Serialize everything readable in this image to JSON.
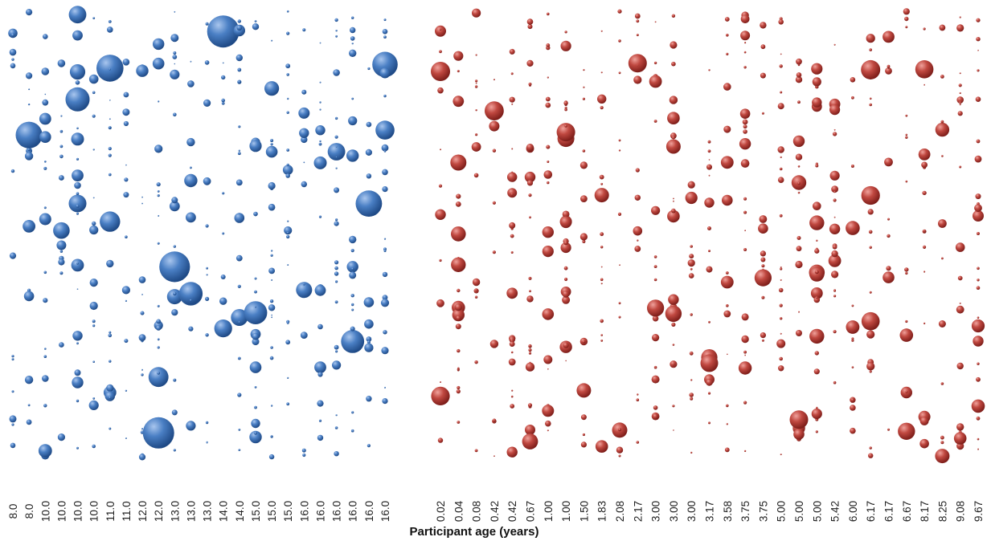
{
  "chart_data": [
    {
      "type": "scatter",
      "mark": "bubble",
      "color": "#3f6fb0",
      "categories": [
        "8.0",
        "8.0",
        "10.0",
        "10.0",
        "10.0",
        "10.0",
        "11.0",
        "11.0",
        "12.0",
        "12.0",
        "13.0",
        "13.0",
        "13.0",
        "14.0",
        "14.0",
        "15.0",
        "15.0",
        "15.0",
        "16.0",
        "16.0",
        "16.0",
        "16.0",
        "16.0",
        "16.0"
      ]
    },
    {
      "type": "scatter",
      "mark": "bubble",
      "color": "#b23a33",
      "categories": [
        "0.02",
        "0.04",
        "0.08",
        "0.42",
        "0.42",
        "0.67",
        "1.00",
        "1.00",
        "1.50",
        "1.83",
        "2.08",
        "2.17",
        "3.00",
        "3.00",
        "3.00",
        "3.17",
        "3.58",
        "3.75",
        "3.75",
        "5.00",
        "5.00",
        "5.00",
        "5.42",
        "6.00",
        "6.17",
        "6.17",
        "6.67",
        "8.17",
        "8.25",
        "9.08",
        "9.67"
      ]
    }
  ],
  "xlabel": "Participant age (years)"
}
